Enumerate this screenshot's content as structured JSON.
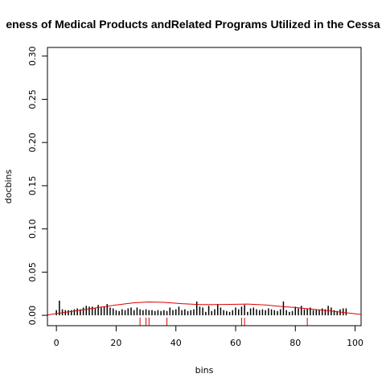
{
  "chart_data": {
    "type": "bar",
    "title": "eness of Medical Products andRelated Programs Utilized in the Cessa",
    "xlabel": "bins",
    "ylabel": "docbins",
    "xlim": [
      -3,
      102
    ],
    "ylim": [
      -0.012,
      0.31
    ],
    "xticks": [
      "0",
      "20",
      "40",
      "60",
      "80",
      "100"
    ],
    "yticks": [
      "0.00",
      "0.05",
      "0.10",
      "0.15",
      "0.20",
      "0.25",
      "0.30"
    ],
    "bar_color": "#000000",
    "curve_color": "#dd0000",
    "rug_color": "#dd0000",
    "grid": false,
    "x": [
      0,
      1,
      2,
      3,
      4,
      5,
      6,
      7,
      8,
      9,
      10,
      11,
      12,
      13,
      14,
      15,
      16,
      17,
      18,
      19,
      20,
      21,
      22,
      23,
      24,
      25,
      26,
      27,
      28,
      29,
      30,
      31,
      32,
      33,
      34,
      35,
      36,
      37,
      38,
      39,
      40,
      41,
      42,
      43,
      44,
      45,
      46,
      47,
      48,
      49,
      50,
      51,
      52,
      53,
      54,
      55,
      56,
      57,
      58,
      59,
      60,
      61,
      62,
      63,
      64,
      65,
      66,
      67,
      68,
      69,
      70,
      71,
      72,
      73,
      74,
      75,
      76,
      77,
      78,
      79,
      80,
      81,
      82,
      83,
      84,
      85,
      86,
      87,
      88,
      89,
      90,
      91,
      92,
      93,
      94,
      95,
      96,
      97
    ],
    "values": [
      0.006,
      0.017,
      0.007,
      0.006,
      0.006,
      0.006,
      0.007,
      0.008,
      0.007,
      0.009,
      0.011,
      0.01,
      0.01,
      0.008,
      0.012,
      0.009,
      0.01,
      0.013,
      0.009,
      0.008,
      0.006,
      0.005,
      0.007,
      0.006,
      0.008,
      0.009,
      0.006,
      0.009,
      0.007,
      0.006,
      0.007,
      0.006,
      0.006,
      0.005,
      0.006,
      0.005,
      0.006,
      0.005,
      0.009,
      0.006,
      0.007,
      0.01,
      0.006,
      0.007,
      0.005,
      0.006,
      0.007,
      0.016,
      0.01,
      0.009,
      0.004,
      0.011,
      0.005,
      0.007,
      0.013,
      0.009,
      0.006,
      0.005,
      0.004,
      0.006,
      0.009,
      0.007,
      0.01,
      0.012,
      0.004,
      0.008,
      0.009,
      0.007,
      0.006,
      0.007,
      0.006,
      0.008,
      0.007,
      0.006,
      0.005,
      0.007,
      0.016,
      0.006,
      0.004,
      0.005,
      0.01,
      0.008,
      0.011,
      0.007,
      0.008,
      0.009,
      0.006,
      0.007,
      0.006,
      0.008,
      0.007,
      0.011,
      0.009,
      0.006,
      0.005,
      0.007,
      0.008,
      0.008
    ],
    "curve": {
      "x": [
        -3,
        2,
        8,
        14,
        20,
        26,
        31,
        36,
        42,
        48,
        54,
        60,
        64,
        70,
        76,
        80,
        86,
        92,
        98,
        102
      ],
      "y": [
        0.0005,
        0.003,
        0.006,
        0.009,
        0.012,
        0.0145,
        0.0155,
        0.015,
        0.0135,
        0.0125,
        0.0125,
        0.0128,
        0.013,
        0.012,
        0.01,
        0.009,
        0.007,
        0.005,
        0.0025,
        0.001
      ]
    },
    "rug": [
      28,
      30,
      31,
      37,
      62,
      63,
      84
    ]
  }
}
